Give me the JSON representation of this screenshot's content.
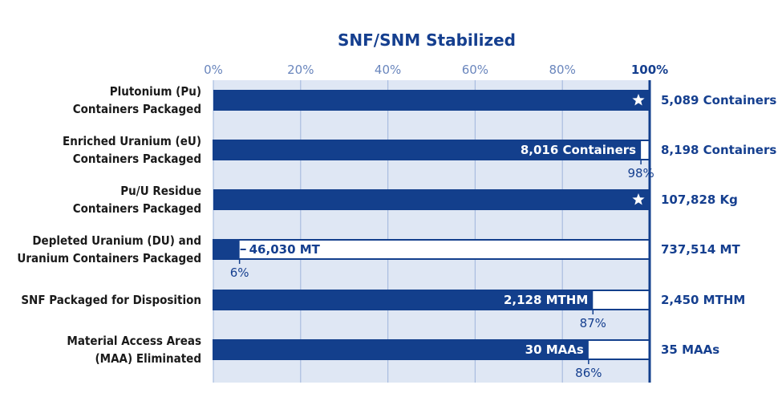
{
  "chart_data": {
    "type": "bar",
    "orientation": "horizontal",
    "title": "SNF/SNM Stabilized",
    "xlim": [
      0,
      100
    ],
    "x_ticks": [
      "0%",
      "20%",
      "40%",
      "60%",
      "80%",
      "100%"
    ],
    "grid": true,
    "colors": {
      "bar": "#133f8c",
      "bg": "#dfe7f4",
      "grid": "#a9bde0",
      "text": "#153f8f"
    },
    "categories": [
      "Plutonium (Pu)\nContainers Packaged",
      "Enriched Uranium (eU)\nContainers Packaged",
      "Pu/U Residue\nContainers Packaged",
      "Depleted Uranium (DU) and\nUranium Containers Packaged",
      "SNF Packaged for Disposition",
      "Material Access Areas\n(MAA) Eliminated"
    ],
    "values": [
      100,
      98,
      100,
      6,
      87,
      86
    ],
    "bars": [
      {
        "percent": 100,
        "completed_label": "",
        "total_label": "5,089 Containers",
        "percent_label": "",
        "complete_icon": "star-icon"
      },
      {
        "percent": 98,
        "completed_label": "8,016 Containers",
        "total_label": "8,198 Containers",
        "percent_label": "98%",
        "complete_icon": ""
      },
      {
        "percent": 100,
        "completed_label": "",
        "total_label": "107,828 Kg",
        "percent_label": "",
        "complete_icon": "star-icon"
      },
      {
        "percent": 6,
        "completed_label": "46,030 MT",
        "total_label": "737,514 MT",
        "percent_label": "6%",
        "complete_icon": ""
      },
      {
        "percent": 87,
        "completed_label": "2,128 MTHM",
        "total_label": "2,450 MTHM",
        "percent_label": "87%",
        "complete_icon": ""
      },
      {
        "percent": 86,
        "completed_label": "30 MAAs",
        "total_label": "35 MAAs",
        "percent_label": "86%",
        "complete_icon": ""
      }
    ]
  }
}
